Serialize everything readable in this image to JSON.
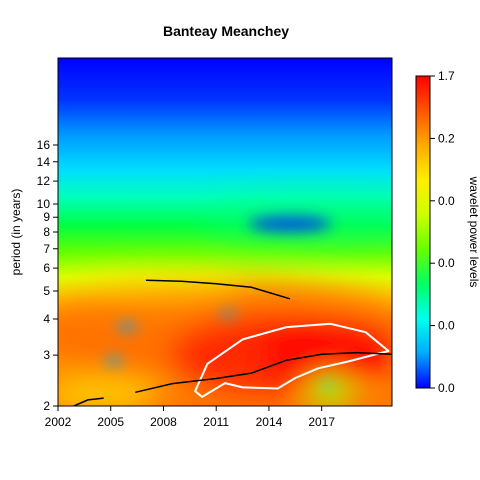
{
  "chart_data": {
    "type": "heatmap",
    "title": "Banteay Meanchey",
    "xlabel": "",
    "ylabel": "period (in years)",
    "x_range": [
      2002,
      2021
    ],
    "y_range": [
      2,
      32
    ],
    "y_scale": "log2",
    "x_ticks": [
      2002,
      2005,
      2008,
      2011,
      2014,
      2017
    ],
    "x_tick_labels": [
      "2002",
      "2005",
      "2008",
      "2011",
      "2014",
      "2017"
    ],
    "y_ticks": [
      2,
      3,
      4,
      5,
      6,
      7,
      8,
      9,
      10,
      12,
      14,
      16
    ],
    "y_tick_labels": [
      "2",
      "3",
      "4",
      "5",
      "6",
      "7",
      "8",
      "9",
      "10",
      "12",
      "14",
      "16"
    ],
    "colorbar": {
      "label": "wavelet power levels",
      "tick_labels": [
        "0.0",
        "0.0",
        "0.0",
        "0.0",
        "0.2",
        "1.7"
      ],
      "colors": [
        "#0000ff",
        "#00aaff",
        "#00ffee",
        "#00ff66",
        "#66ff00",
        "#ccff00",
        "#ffee00",
        "#ffaa00",
        "#ff5500",
        "#ff0000"
      ]
    },
    "power_features": [
      {
        "name": "low_band_hotspot",
        "x_center": 2014,
        "period_center": 2.9,
        "level": 1.0
      },
      {
        "name": "mid_band",
        "x_center": 2011,
        "period_center": 4.0,
        "level": 0.65
      },
      {
        "name": "cold_spot",
        "x_center": 2014.8,
        "period_center": 8.3,
        "level": 0.1
      }
    ],
    "significance_contour": [
      [
        2009.8,
        2.25
      ],
      [
        2010.5,
        2.8
      ],
      [
        2012.5,
        3.4
      ],
      [
        2015,
        3.75
      ],
      [
        2017.5,
        3.85
      ],
      [
        2019.5,
        3.6
      ],
      [
        2020.8,
        3.1
      ],
      [
        2018.5,
        2.85
      ],
      [
        2016.8,
        2.7
      ],
      [
        2015.5,
        2.5
      ],
      [
        2014.5,
        2.3
      ],
      [
        2012.5,
        2.32
      ],
      [
        2011.5,
        2.4
      ],
      [
        2010.2,
        2.15
      ],
      [
        2009.8,
        2.25
      ]
    ],
    "ridges": [
      [
        [
          2002.9,
          2.0
        ],
        [
          2003.7,
          2.1
        ],
        [
          2004.6,
          2.13
        ]
      ],
      [
        [
          2006.4,
          2.23
        ],
        [
          2008.5,
          2.39
        ],
        [
          2011,
          2.49
        ],
        [
          2013,
          2.6
        ],
        [
          2015,
          2.88
        ],
        [
          2017,
          3.02
        ],
        [
          2019,
          3.06
        ],
        [
          2021,
          3.02
        ]
      ],
      [
        [
          2007,
          5.45
        ],
        [
          2009,
          5.4
        ],
        [
          2011,
          5.3
        ],
        [
          2013,
          5.15
        ],
        [
          2015.2,
          4.7
        ]
      ]
    ]
  }
}
